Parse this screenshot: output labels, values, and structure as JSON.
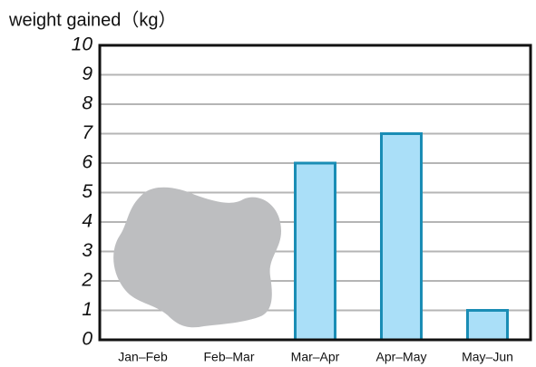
{
  "chart_data": {
    "type": "bar",
    "y_label": "weight gained（kg）",
    "categories": [
      "Jan–Feb",
      "Feb–Mar",
      "Mar–Apr",
      "Apr–May",
      "May–Jun"
    ],
    "values": [
      null,
      null,
      6,
      7,
      1
    ],
    "color": "#aadff8",
    "edge_color": "#1a8db5",
    "ylim": [
      0,
      10
    ],
    "yticks": [
      0,
      1,
      2,
      3,
      4,
      5,
      6,
      7,
      8,
      9,
      10
    ],
    "grid": true
  }
}
